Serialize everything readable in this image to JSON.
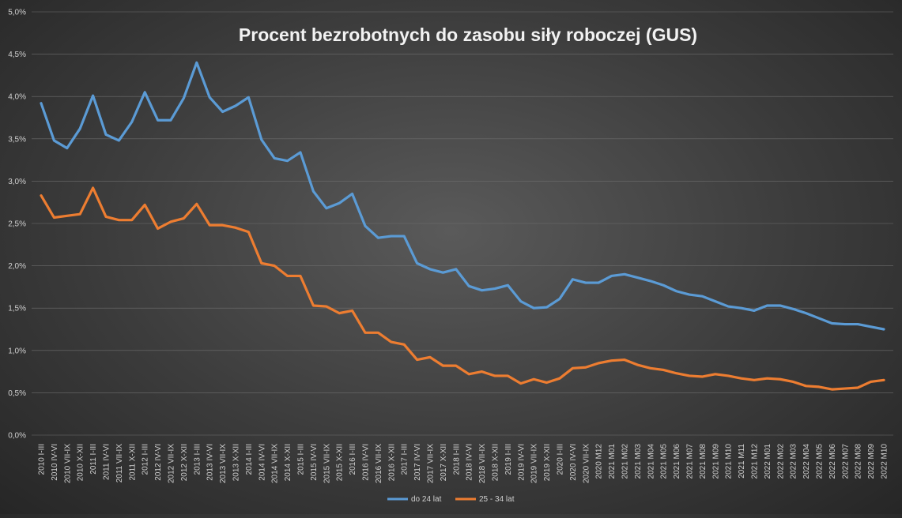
{
  "chart_data": {
    "type": "line",
    "title": "Procent bezrobotnych do zasobu siły roboczej (GUS)",
    "xlabel": "",
    "ylabel": "",
    "ylim": [
      0,
      5
    ],
    "y_ticks": [
      "0,0%",
      "0,5%",
      "1,0%",
      "1,5%",
      "2,0%",
      "2,5%",
      "3,0%",
      "3,5%",
      "4,0%",
      "4,5%",
      "5,0%"
    ],
    "grid": true,
    "legend_position": "bottom",
    "categories": [
      "2010 I-III",
      "2010 IV-VI",
      "2010 VII-IX",
      "2010 X-XII",
      "2011 I-III",
      "2011 IV-VI",
      "2011 VII-IX",
      "2011 X-XII",
      "2012 I-III",
      "2012 IV-VI",
      "2012 VII-IX",
      "2012 X-XII",
      "2013 I-III",
      "2013 IV-VI",
      "2013 VII-IX",
      "2013 X-XII",
      "2014 I-III",
      "2014 IV-VI",
      "2014 VII-IX",
      "2014 X-XII",
      "2015 I-III",
      "2015 IV-VI",
      "2015 VII-IX",
      "2015 X-XII",
      "2016 I-III",
      "2016 IV-VI",
      "2016 VII-IX",
      "2016 X-XII",
      "2017 I-III",
      "2017 IV-VI",
      "2017 VII-IX",
      "2017 X-XII",
      "2018 I-III",
      "2018 IV-VI",
      "2018 VII-IX",
      "2018 X-XII",
      "2019 I-III",
      "2019 IV-VI",
      "2019 VII-IX",
      "2019 X-XII",
      "2020 I-III",
      "2020 IV-VI",
      "2020 VII-IX",
      "2020 M12",
      "2021 M01",
      "2021 M02",
      "2021 M03",
      "2021 M04",
      "2021 M05",
      "2021 M06",
      "2021 M07",
      "2021 M08",
      "2021 M09",
      "2021 M10",
      "2021 M11",
      "2021 M12",
      "2022 M01",
      "2022 M02",
      "2022 M03",
      "2022 M04",
      "2022 M05",
      "2022 M06",
      "2022 M07",
      "2022 M08",
      "2022 M09",
      "2022 M10"
    ],
    "series": [
      {
        "name": "do 24 lat",
        "color": "#5b9bd5",
        "values": [
          3.92,
          3.48,
          3.39,
          3.62,
          4.01,
          3.55,
          3.48,
          3.7,
          4.05,
          3.72,
          3.72,
          3.98,
          4.4,
          3.99,
          3.82,
          3.89,
          3.99,
          3.49,
          3.27,
          3.24,
          3.34,
          2.88,
          2.68,
          2.74,
          2.85,
          2.47,
          2.33,
          2.35,
          2.35,
          2.03,
          1.96,
          1.92,
          1.96,
          1.76,
          1.71,
          1.73,
          1.77,
          1.58,
          1.5,
          1.51,
          1.61,
          1.84,
          1.8,
          1.8,
          1.88,
          1.9,
          1.86,
          1.82,
          1.77,
          1.7,
          1.66,
          1.64,
          1.58,
          1.52,
          1.5,
          1.47,
          1.53,
          1.53,
          1.49,
          1.44,
          1.38,
          1.32,
          1.31,
          1.31,
          1.28,
          1.25
        ]
      },
      {
        "name": "25 - 34 lat",
        "color": "#ed7d31",
        "values": [
          2.83,
          2.57,
          2.59,
          2.61,
          2.92,
          2.58,
          2.54,
          2.54,
          2.72,
          2.44,
          2.52,
          2.56,
          2.73,
          2.48,
          2.48,
          2.45,
          2.4,
          2.03,
          2.0,
          1.88,
          1.88,
          1.53,
          1.52,
          1.44,
          1.47,
          1.21,
          1.21,
          1.1,
          1.07,
          0.89,
          0.92,
          0.82,
          0.82,
          0.72,
          0.75,
          0.7,
          0.7,
          0.61,
          0.66,
          0.62,
          0.67,
          0.79,
          0.8,
          0.85,
          0.88,
          0.89,
          0.83,
          0.79,
          0.77,
          0.73,
          0.7,
          0.69,
          0.72,
          0.7,
          0.67,
          0.65,
          0.67,
          0.66,
          0.63,
          0.58,
          0.57,
          0.54,
          0.55,
          0.56,
          0.63,
          0.65
        ]
      }
    ]
  }
}
